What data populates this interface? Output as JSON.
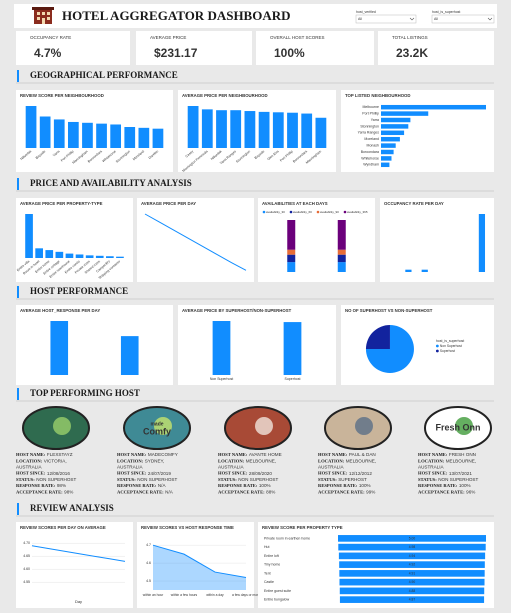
{
  "header": {
    "title": "HOTEL AGGREGATOR DASHBOARD",
    "filters": [
      {
        "label": "host_verified",
        "value": "All"
      },
      {
        "label": "host_is_superhost",
        "value": "All"
      }
    ]
  },
  "kpis": [
    {
      "label": "OCCUPANCY RATE",
      "value": "4.7%"
    },
    {
      "label": "AVERAGE PRICE",
      "value": "$231.17"
    },
    {
      "label": "OVERALL HOST SCORES",
      "value": "100%"
    },
    {
      "label": "TOTAL LISTINGS",
      "value": "23.2K"
    }
  ],
  "sections": [
    "GEOGRAPHICAL PERFORMANCE",
    "PRICE AND AVAILABILITY ANALYSIS",
    "HOST PERFORMANCE",
    "TOP PERFORMING HOST",
    "REVIEW ANALYSIS"
  ],
  "host_fields": [
    "HOST NAME:",
    "LOCATION:",
    "HOST SINCE:",
    "STATUS:",
    "RESPONSE RATE:",
    "ACCEPTANCE RATE:"
  ],
  "hosts": [
    {
      "name": "FLEXSTAYZ",
      "location": [
        "VICTORIA,",
        "AUSTRALIA"
      ],
      "since": "12/08/2016",
      "status": "NON SUPERHOST",
      "response": "98%",
      "acceptance": "98%"
    },
    {
      "name": "MADECOMFY",
      "location": [
        "SYDNEY,",
        "AUSTRALIA"
      ],
      "since": "24/07/2019",
      "status": "NON SUPERHOST",
      "response": "N/A",
      "acceptance": "N/A",
      "logo_text": [
        "made",
        "Comfy"
      ]
    },
    {
      "name": "AVANTE HOME",
      "location": [
        "MELBOURNE,",
        "AUSTRALIA"
      ],
      "since": "28/09/2020",
      "status": "NON SUPERHOST",
      "response": "100%",
      "acceptance": "88%"
    },
    {
      "name": "PAUL & DAN",
      "location": [
        "MELBOURNE,",
        "AUSTRALIA"
      ],
      "since": "12/12/2012",
      "status": "SUPERHOST",
      "response": "100%",
      "acceptance": "99%"
    },
    {
      "name": "FRESH ONN",
      "location": [
        "MELBOURNE,",
        "AUSTRALIA"
      ],
      "since": "13/07/2021",
      "status": "NON SUPERHOST",
      "response": "100%",
      "acceptance": "96%",
      "logo_text": [
        "Fresh Onn"
      ]
    }
  ],
  "chart_data": [
    {
      "type": "bar",
      "title": "REVIEW SCORE PER NEIGHBOURHOOD",
      "color": "#118dff",
      "categories": [
        "Nillumbik",
        "Bayside",
        "Yarra",
        "Port Phillip",
        "Manningham",
        "Boroondara",
        "Whitehorse",
        "Stonnington",
        "Moreland",
        "Darebin"
      ],
      "values": [
        100,
        75,
        68,
        62,
        60,
        58,
        56,
        50,
        48,
        46
      ]
    },
    {
      "type": "bar",
      "title": "AVERAGE PRICE PER NEIGHBOURHOOD",
      "color": "#118dff",
      "categories": [
        "Casey",
        "Mornington Peninsula",
        "Nillumbik",
        "Yarra Ranges",
        "Stonnington",
        "Bayside",
        "Glen Eira",
        "Port Phillip",
        "Boroondara",
        "Manningham"
      ],
      "values": [
        100,
        92,
        90,
        90,
        88,
        86,
        85,
        84,
        82,
        72
      ]
    },
    {
      "type": "hbar",
      "title": "TOP LISTED NEIGHBOURHOOD",
      "color": "#118dff",
      "categories": [
        "Melbourne",
        "Port Phillip",
        "Yarra",
        "Stonnington",
        "Yarra Ranges",
        "Moreland",
        "Monash",
        "Boroondara",
        "Whitehorse",
        "Wyndham"
      ],
      "values": [
        100,
        45,
        28,
        26,
        22,
        18,
        14,
        12,
        10,
        8
      ]
    },
    {
      "type": "bar",
      "title": "AVERAGE PRICE PER PROPERTY-TYPE",
      "color": "#118dff",
      "categories": [
        "Entire villa",
        "Room in hotel",
        "Entire home",
        "Entire cottage",
        "Entire townhouse",
        "Entire condo",
        "Private room",
        "Shared room",
        "Camper/RV",
        "Shipping container"
      ],
      "values": [
        100,
        22,
        18,
        14,
        10,
        8,
        6,
        5,
        4,
        3
      ]
    },
    {
      "type": "line",
      "title": "AVERAGE PRICE PER DAY",
      "color": "#118dff",
      "values": [
        100,
        86,
        72,
        58,
        44,
        30,
        16,
        3
      ]
    },
    {
      "type": "stacked",
      "title": "AVAILABILITIES AT EACH DAYS",
      "series": [
        {
          "name": "availability_30",
          "color": "#118dff",
          "values": [
            20,
            20
          ]
        },
        {
          "name": "availability_60",
          "color": "#12239e",
          "values": [
            15,
            15
          ]
        },
        {
          "name": "availability_90",
          "color": "#e66c37",
          "values": [
            10,
            10
          ]
        },
        {
          "name": "availability_365",
          "color": "#6b007b",
          "values": [
            60,
            60
          ]
        }
      ]
    },
    {
      "type": "bar",
      "title": "OCCUPANCY RATE PER DAY",
      "color": "#118dff",
      "values": [
        0,
        0,
        4,
        0,
        4,
        0,
        0,
        0,
        0,
        0,
        0,
        100
      ]
    },
    {
      "type": "bar",
      "title": "AVERAGE HOST_RESPONSE PER DAY",
      "color": "#118dff",
      "values": [
        100,
        72
      ]
    },
    {
      "type": "bar",
      "title": "AVERAGE PRICE BY SUPERHOST/NON-SUPERHOST",
      "color": "#118dff",
      "categories": [
        "Non Superhost",
        "Superhost"
      ],
      "values": [
        100,
        98
      ]
    },
    {
      "type": "pie",
      "title": "NO OF SUPERHOST VS NON-SUPERHOST",
      "legend_title": "host_is_superhost",
      "categories": [
        "Non Superhost",
        "Superhost"
      ],
      "values": [
        75,
        25
      ],
      "colors": [
        "#118dff",
        "#12239e"
      ]
    },
    {
      "type": "line",
      "title": "REVIEW SCORES PER DAY ON AVERAGE",
      "color": "#118dff",
      "xlabel": "Day",
      "values": [
        4.69,
        4.68,
        4.67,
        4.66,
        4.65,
        4.64,
        4.63
      ],
      "ylim": [
        4.52,
        4.72
      ],
      "yticks": [
        {
          "value": 4.7,
          "label": "4.70"
        },
        4.65,
        {
          "value": 4.6,
          "label": "4.60"
        },
        4.55
      ]
    },
    {
      "type": "line",
      "title": "REVIEW SCORES VS HOST RESPONSE TIME",
      "color": "#118dff",
      "area": true,
      "categories": [
        "within an hour",
        "within a few hours",
        "within a day",
        "a few days or more"
      ],
      "values": [
        4.7,
        4.65,
        4.55,
        4.52
      ],
      "ylim": [
        4.45,
        4.74
      ],
      "yticks": [
        4.7,
        4.6,
        4.5
      ]
    },
    {
      "type": "funnel",
      "title": "REVIEW SCORE PER PROPERTY TYPE",
      "color": "#118dff",
      "categories": [
        "Private room in earthen home",
        "Hut",
        "Entire loft",
        "Tiny home",
        "Tent",
        "Castle",
        "Entire guest suite",
        "Entire bungalow"
      ],
      "values": [
        5.0,
        4.98,
        4.94,
        4.92,
        4.91,
        4.9,
        4.88,
        4.87
      ],
      "value_labels": [
        "5.00",
        "4.98",
        "4.94",
        "4.92",
        "4.91",
        "4.90",
        "4.88",
        "4.87"
      ]
    }
  ]
}
